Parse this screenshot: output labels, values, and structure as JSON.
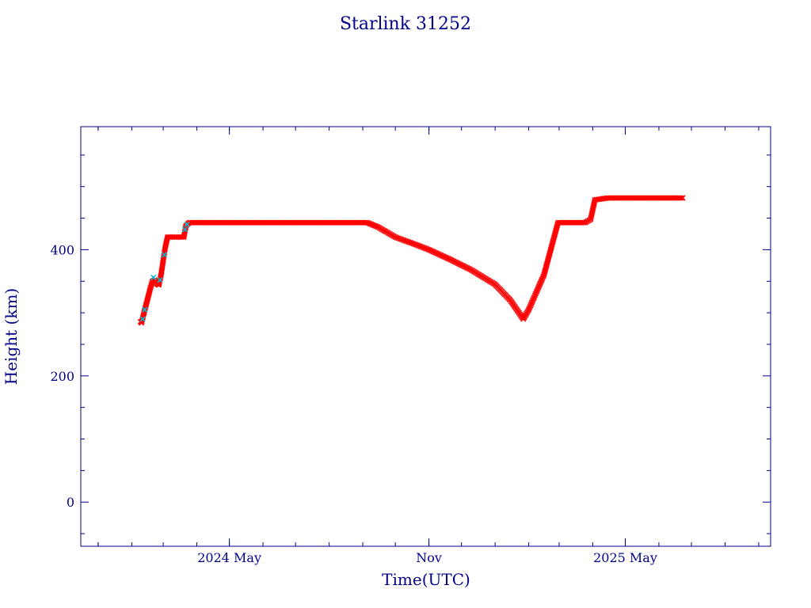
{
  "chart_data": {
    "type": "scatter",
    "title": "Starlink 31252",
    "xlabel": "Time(UTC)",
    "ylabel": "Height (km)",
    "xlim": [
      "2023-12-16",
      "2025-09-12"
    ],
    "ylim": [
      -70,
      595
    ],
    "x_ticks": [
      {
        "label": "2024 May",
        "date": "2024-05-01"
      },
      {
        "label": "Nov",
        "date": "2024-11-01"
      },
      {
        "label": "2025 May",
        "date": "2025-05-01"
      }
    ],
    "y_ticks": [
      0,
      200,
      400
    ],
    "grid": false,
    "colors": {
      "axis": "#00008b",
      "primary": "#ff0000",
      "secondary": "#00bcd4"
    },
    "series": [
      {
        "marker": "x",
        "color": "#ff0000",
        "points": [
          [
            "2024-02-09",
            286
          ],
          [
            "2024-02-10",
            284
          ],
          [
            "2024-02-12",
            298
          ],
          [
            "2024-02-15",
            318
          ],
          [
            "2024-02-18",
            338
          ],
          [
            "2024-02-20",
            350
          ],
          [
            "2024-02-22",
            352
          ],
          [
            "2024-02-24",
            346
          ],
          [
            "2024-02-26",
            344
          ],
          [
            "2024-02-28",
            360
          ],
          [
            "2024-03-01",
            383
          ],
          [
            "2024-03-03",
            405
          ],
          [
            "2024-03-05",
            420
          ],
          [
            "2024-03-10",
            420
          ],
          [
            "2024-03-15",
            420
          ],
          [
            "2024-03-20",
            420
          ],
          [
            "2024-03-22",
            438
          ],
          [
            "2024-03-25",
            443
          ],
          [
            "2024-04-15",
            443
          ],
          [
            "2024-05-15",
            443
          ],
          [
            "2024-06-15",
            443
          ],
          [
            "2024-07-15",
            443
          ],
          [
            "2024-08-15",
            443
          ],
          [
            "2024-09-05",
            443
          ],
          [
            "2024-09-15",
            436
          ],
          [
            "2024-10-01",
            420
          ],
          [
            "2024-10-20",
            408
          ],
          [
            "2024-11-01",
            400
          ],
          [
            "2024-11-20",
            385
          ],
          [
            "2024-12-10",
            368
          ],
          [
            "2025-01-01",
            345
          ],
          [
            "2025-01-15",
            320
          ],
          [
            "2025-01-27",
            290
          ],
          [
            "2025-02-01",
            305
          ],
          [
            "2025-02-15",
            360
          ],
          [
            "2025-02-28",
            443
          ],
          [
            "2025-03-10",
            443
          ],
          [
            "2025-03-25",
            443
          ],
          [
            "2025-03-30",
            448
          ],
          [
            "2025-04-03",
            479
          ],
          [
            "2025-04-15",
            482
          ],
          [
            "2025-05-01",
            482
          ],
          [
            "2025-05-15",
            482
          ],
          [
            "2025-06-01",
            482
          ],
          [
            "2025-06-15",
            482
          ],
          [
            "2025-06-23",
            482
          ]
        ]
      },
      {
        "marker": "x",
        "color": "#00bcd4",
        "points": [
          [
            "2024-02-11",
            290
          ],
          [
            "2024-02-13",
            305
          ],
          [
            "2024-02-21",
            356
          ],
          [
            "2024-02-27",
            352
          ],
          [
            "2024-03-02",
            392
          ],
          [
            "2024-03-21",
            432
          ],
          [
            "2024-03-23",
            440
          ]
        ]
      }
    ]
  }
}
